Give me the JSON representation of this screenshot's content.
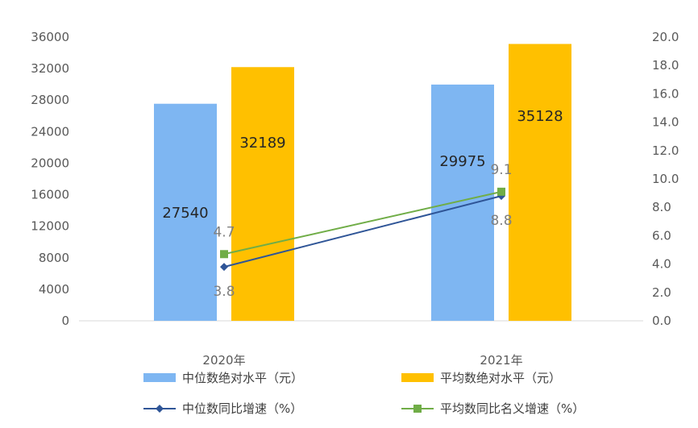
{
  "chart_data": {
    "type": "bar",
    "categories": [
      "2020年",
      "2021年"
    ],
    "bar_series": [
      {
        "name": "中位数绝对水平（元）",
        "values": [
          27540,
          29975
        ],
        "color": "#7EB6F2"
      },
      {
        "name": "平均数绝对水平（元）",
        "values": [
          32189,
          35128
        ],
        "color": "#FFC000"
      }
    ],
    "line_series": [
      {
        "name": "中位数同比增速（%）",
        "values": [
          3.8,
          8.8
        ],
        "labels": [
          "3.8",
          "8.8"
        ],
        "color": "#2F5597",
        "marker": "diamond"
      },
      {
        "name": "平均数同比名义增速（%）",
        "values": [
          4.7,
          9.1
        ],
        "labels": [
          "4.7",
          "9.1"
        ],
        "color": "#70AD47",
        "marker": "square"
      }
    ],
    "y_left": {
      "min": 0,
      "max": 36000,
      "step": 4000,
      "ticks": [
        "0",
        "4000",
        "8000",
        "12000",
        "16000",
        "20000",
        "24000",
        "28000",
        "32000",
        "36000"
      ]
    },
    "y_right": {
      "min": 0,
      "max": 20,
      "step": 2,
      "ticks": [
        "0.0",
        "2.0",
        "4.0",
        "6.0",
        "8.0",
        "10.0",
        "12.0",
        "14.0",
        "16.0",
        "18.0",
        "20.0"
      ]
    },
    "grid": false,
    "legend_position": "bottom",
    "title": "",
    "xlabel": "",
    "ylabel": ""
  }
}
